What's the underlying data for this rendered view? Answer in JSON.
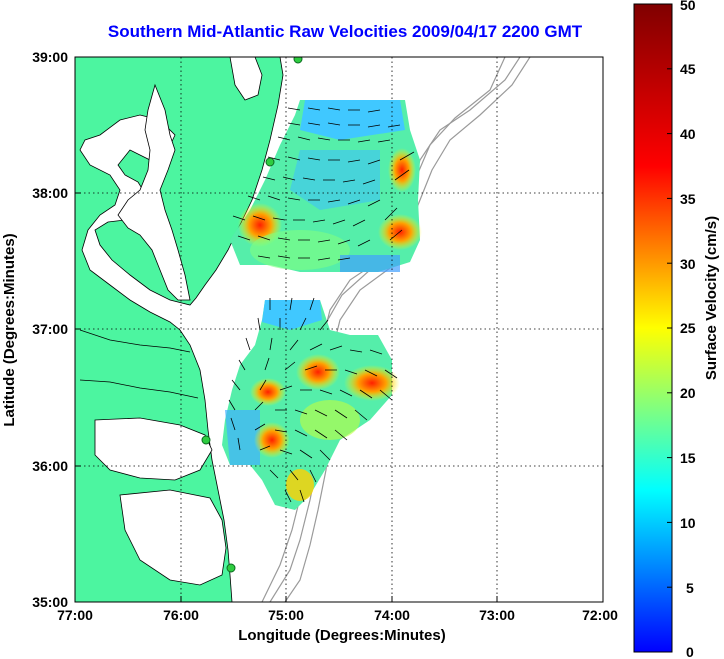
{
  "title": "Southern Mid-Atlantic Raw Velocities 2009/04/17 2200 GMT",
  "x_axis": {
    "label": "Longitude (Degrees:Minutes)",
    "ticks": [
      "77:00",
      "76:00",
      "75:00",
      "74:00",
      "73:00",
      "72:00"
    ]
  },
  "y_axis": {
    "label": "Latitude (Degrees:Minutes)",
    "ticks": [
      "39:00",
      "38:00",
      "37:00",
      "36:00",
      "35:00"
    ]
  },
  "colorbar": {
    "label": "Surface Velocity (cm/s)",
    "ticks": [
      "50",
      "45",
      "40",
      "35",
      "30",
      "25",
      "20",
      "15",
      "10",
      "5",
      "0"
    ],
    "range": [
      0,
      50
    ],
    "colormap": "jet"
  },
  "colors": {
    "land": "#4cf5a0",
    "title": "#0000ff",
    "coast": "#000000",
    "bathymetry": "#9a9a9a",
    "station": "#2ecc40"
  },
  "legend": "none",
  "grid": "dotted"
}
